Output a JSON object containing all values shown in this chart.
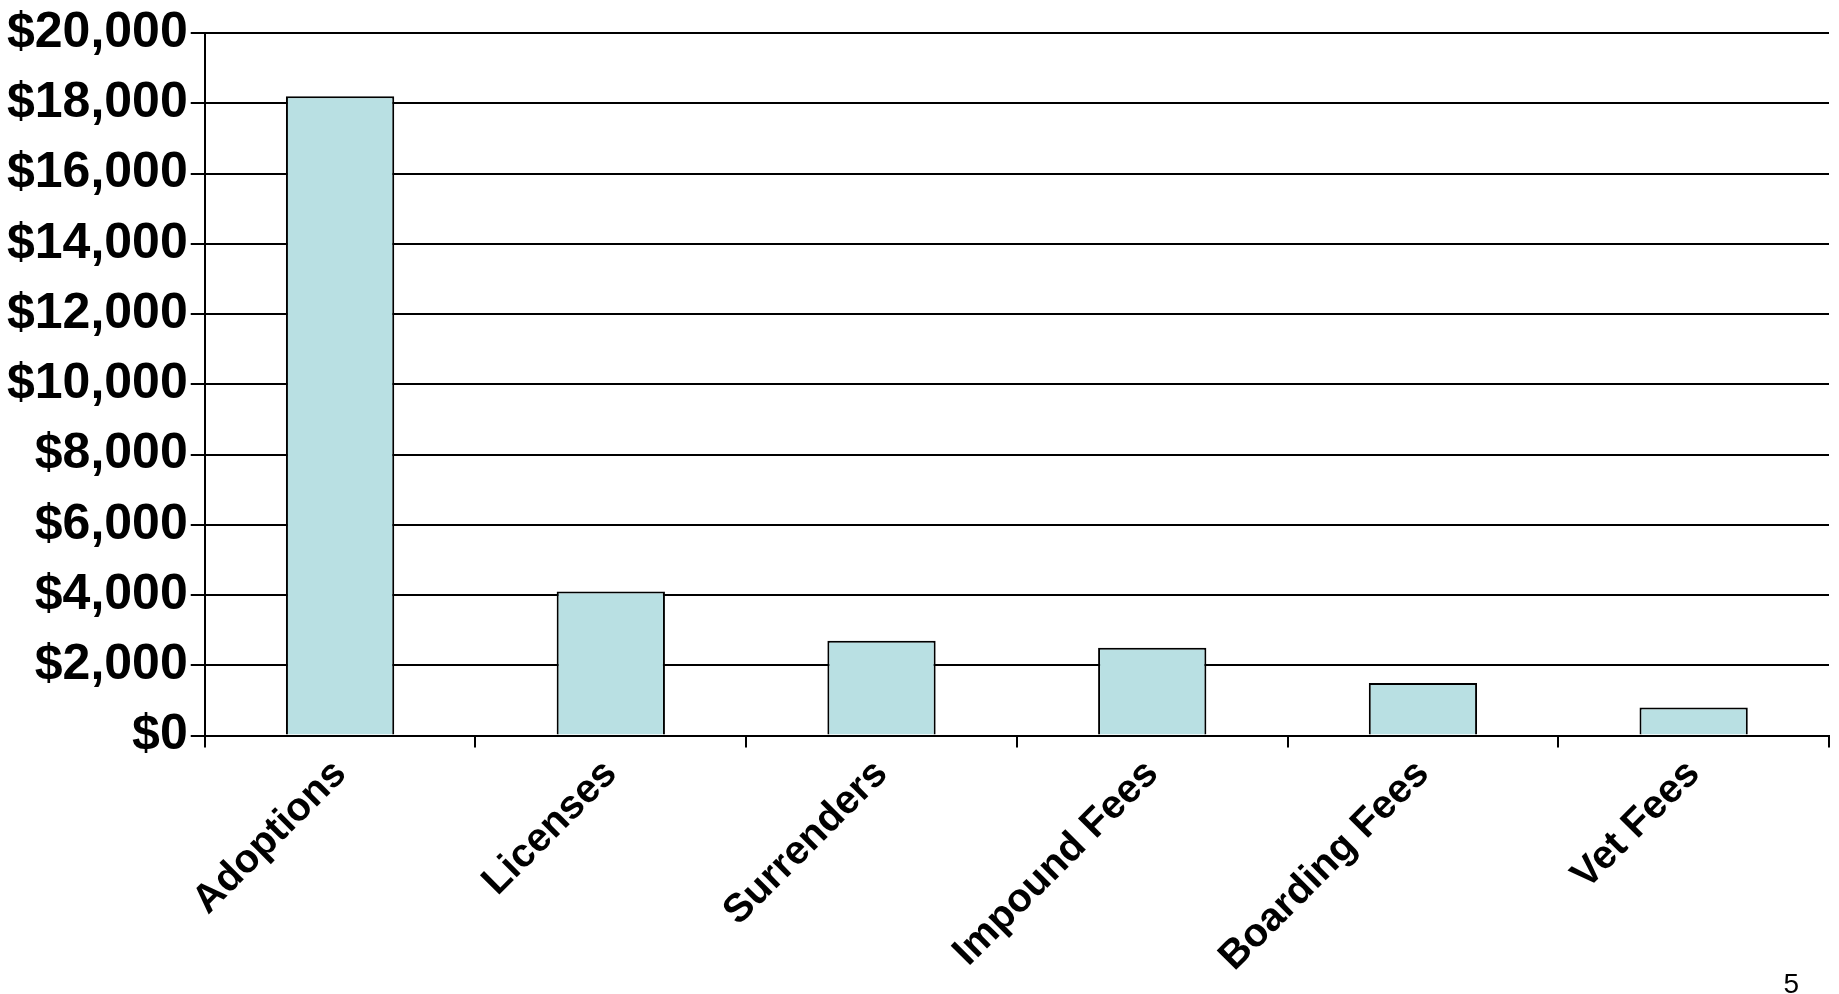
{
  "chart_data": {
    "type": "bar",
    "categories": [
      "Adoptions",
      "Licenses",
      "Surrenders",
      "Impound Fees",
      "Boarding Fees",
      "Vet Fees"
    ],
    "values": [
      18200,
      4100,
      2700,
      2500,
      1500,
      800
    ],
    "color": "#b9e0e3",
    "ylim": [
      0,
      20000
    ],
    "yticks": [
      {
        "value": 0,
        "label": "$0"
      },
      {
        "value": 2000,
        "label": "$2,000"
      },
      {
        "value": 4000,
        "label": "$4,000"
      },
      {
        "value": 6000,
        "label": "$6,000"
      },
      {
        "value": 8000,
        "label": "$8,000"
      },
      {
        "value": 10000,
        "label": "$10,000"
      },
      {
        "value": 12000,
        "label": "$12,000"
      },
      {
        "value": 14000,
        "label": "$14,000"
      },
      {
        "value": 16000,
        "label": "$16,000"
      },
      {
        "value": 18000,
        "label": "$18,000"
      },
      {
        "value": 20000,
        "label": "$20,000"
      }
    ],
    "grid": "y",
    "legend": false,
    "annotations": [
      "5"
    ]
  }
}
